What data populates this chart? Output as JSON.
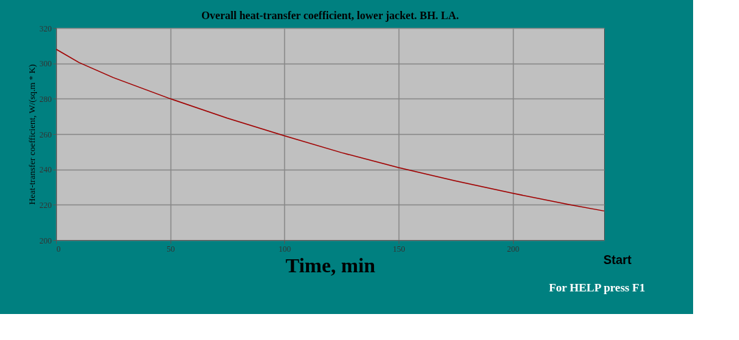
{
  "chart_data": {
    "type": "line",
    "title": "Overall heat-transfer coefficient, lower jacket. BH. LA.",
    "xlabel": "Time, min",
    "ylabel": "Heat-transfer coefficient, W/(sq.m * K)",
    "x": [
      0,
      10,
      25,
      50,
      75,
      100,
      125,
      150,
      175,
      200,
      225,
      240
    ],
    "series": [
      {
        "color": "#a00000",
        "values": [
          308,
          300.5,
          292,
          280,
          269,
          259,
          249.5,
          241,
          233.5,
          226.5,
          220,
          216.5
        ]
      }
    ],
    "xlim": [
      0,
      240
    ],
    "xticks": [
      0,
      50,
      100,
      150,
      200
    ],
    "ylim": [
      200,
      320
    ],
    "yticks": [
      200,
      220,
      240,
      260,
      280,
      300,
      320
    ],
    "grid": true,
    "marker": "none",
    "line_style": "solid",
    "annotations": [
      "Start",
      "For HELP press F1"
    ]
  }
}
